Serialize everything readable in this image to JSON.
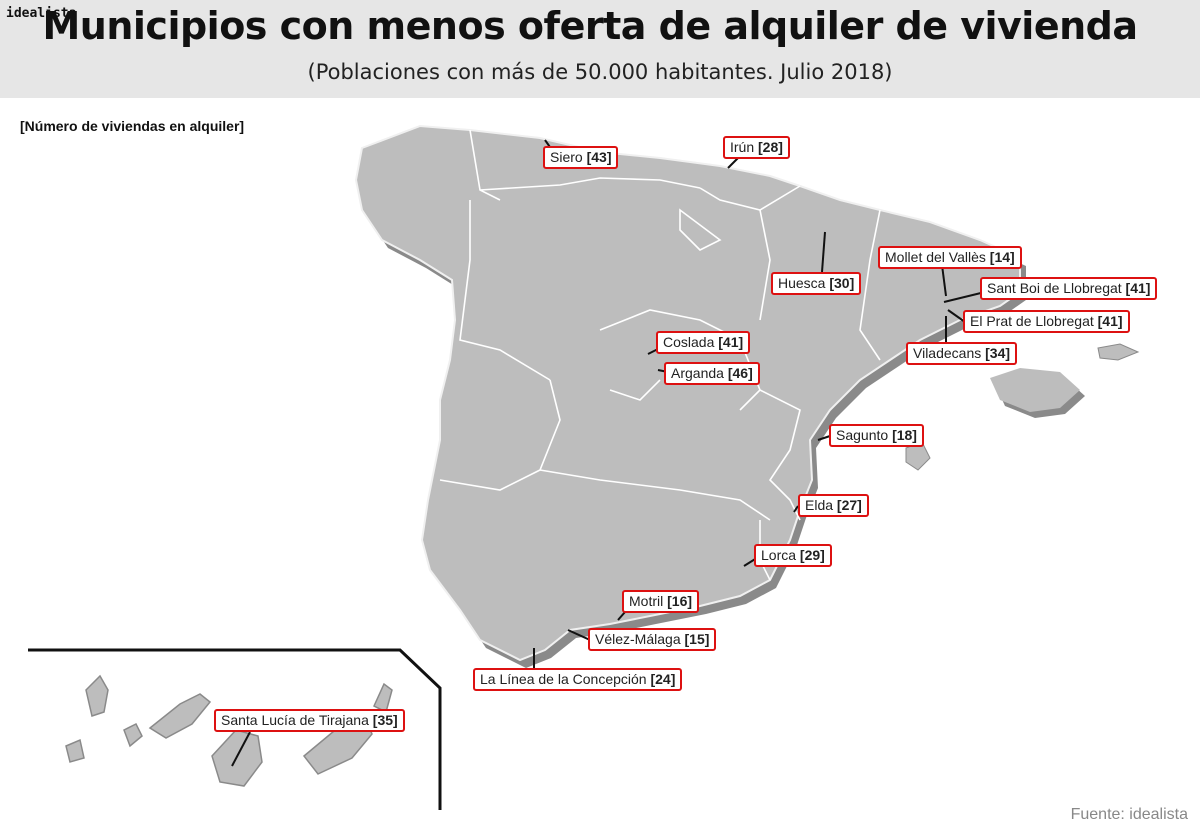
{
  "brand": "idealista",
  "title": "Municipios con menos oferta de alquiler de vivienda",
  "subtitle": "(Poblaciones con más de 50.000 habitantes. Julio 2018)",
  "legend": "[Número de viviendas en alquiler]",
  "source": "Fuente: idealista",
  "colors": {
    "land": "#bdbdbd",
    "shadow": "#8a8a8a",
    "border": "#ffffff",
    "label_border": "#dd1111"
  },
  "labels": [
    {
      "name": "Siero",
      "value": "[43]"
    },
    {
      "name": "Irún",
      "value": "[28]"
    },
    {
      "name": "Huesca",
      "value": "[30]"
    },
    {
      "name": "Mollet del Vallès",
      "value": "[14]"
    },
    {
      "name": "Sant Boi de Llobregat",
      "value": "[41]"
    },
    {
      "name": "El Prat de Llobregat",
      "value": "[41]"
    },
    {
      "name": "Viladecans",
      "value": "[34]"
    },
    {
      "name": "Coslada",
      "value": "[41]"
    },
    {
      "name": "Arganda",
      "value": "[46]"
    },
    {
      "name": "Sagunto",
      "value": "[18]"
    },
    {
      "name": "Elda",
      "value": "[27]"
    },
    {
      "name": "Lorca",
      "value": "[29]"
    },
    {
      "name": "Motril",
      "value": "[16]"
    },
    {
      "name": "Vélez-Málaga",
      "value": "[15]"
    },
    {
      "name": "La Línea de la Concepción",
      "value": "[24]"
    },
    {
      "name": "Santa Lucía de Tirajana",
      "value": "[35]"
    }
  ]
}
